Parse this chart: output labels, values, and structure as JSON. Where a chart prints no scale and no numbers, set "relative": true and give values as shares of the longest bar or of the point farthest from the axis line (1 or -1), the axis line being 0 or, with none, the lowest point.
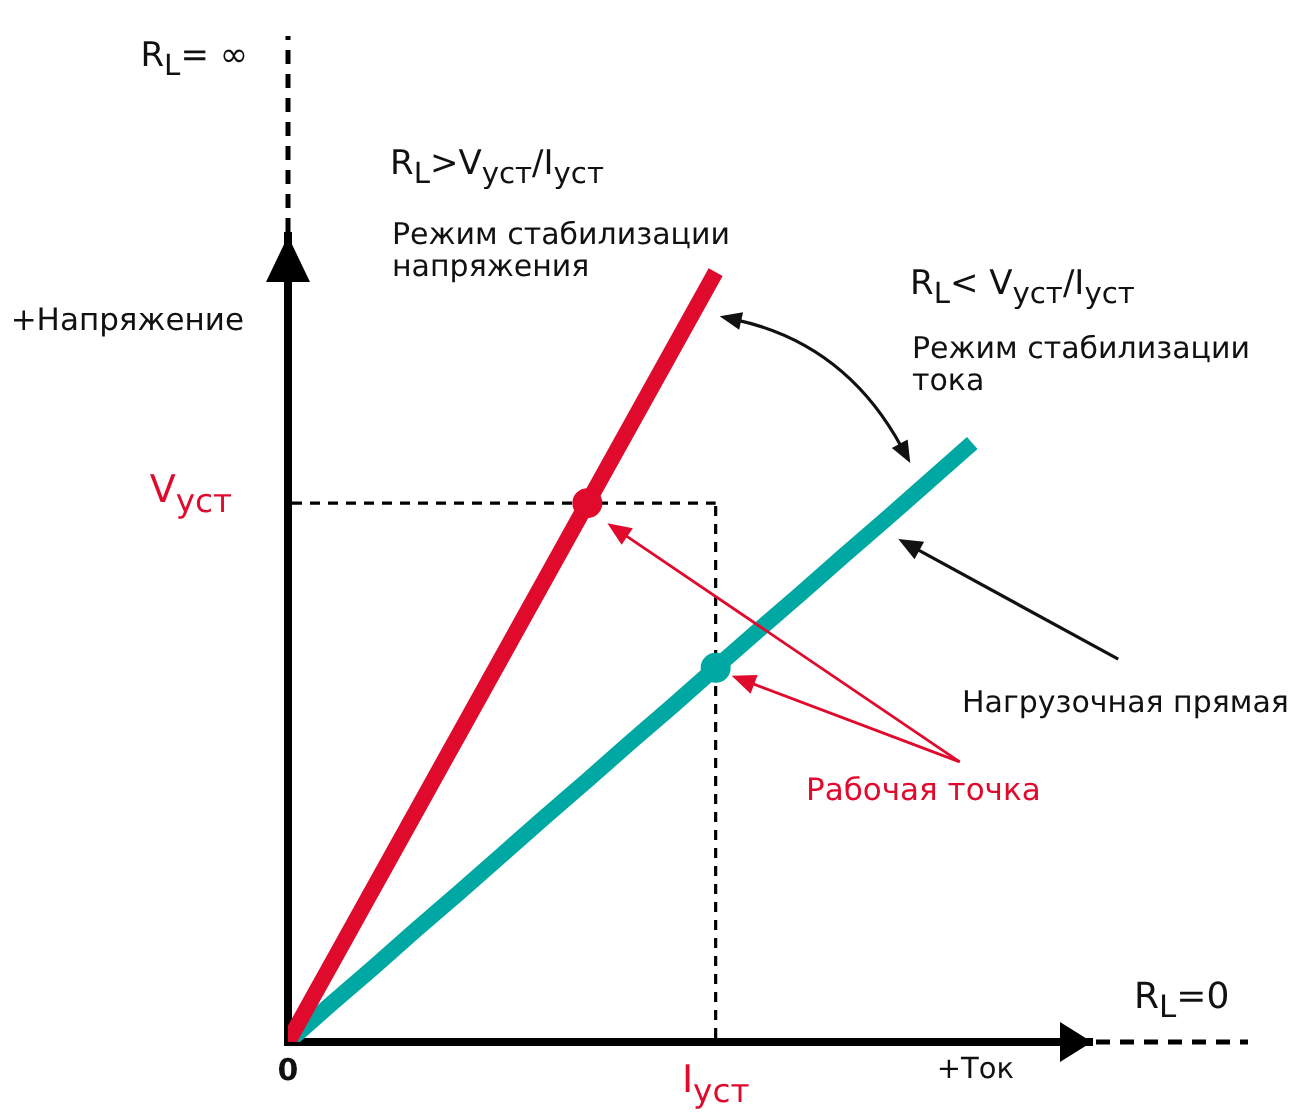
{
  "chart_data": {
    "type": "line",
    "relative": true,
    "xlabel": "+Ток",
    "ylabel": "+Напряжение",
    "categories": [
      "0",
      null,
      null,
      null,
      null,
      null,
      null,
      null,
      null,
      null,
      "I$_{уст}$",
      null,
      null,
      null,
      null,
      null,
      null
    ],
    "series": [
      {
        "color": "#e00a2d",
        "values": [
          0,
          0.1,
          0.2,
          0.3,
          0.4,
          0.5,
          0.6,
          0.7,
          0.8,
          0.9,
          1,
          null,
          null,
          null,
          null,
          null,
          null
        ]
      },
      {
        "color": "#00a8a3",
        "values": [
          0,
          0.049,
          0.097,
          0.146,
          0.194,
          0.243,
          0.292,
          0.34,
          0.389,
          0.437,
          0.486,
          0.535,
          0.583,
          0.632,
          0.68,
          0.729,
          0.778
        ]
      },
      {
        "type": "scatter",
        "marker": "circle",
        "color": "#e00a2d",
        "values": [
          null,
          null,
          null,
          null,
          null,
          null,
          null,
          0.7,
          null,
          null,
          null,
          null,
          null,
          null,
          null,
          null,
          null
        ]
      },
      {
        "type": "scatter",
        "marker": "circle",
        "color": "#00a8a3",
        "values": [
          null,
          null,
          null,
          null,
          null,
          null,
          null,
          null,
          null,
          null,
          0.486,
          null,
          null,
          null,
          null,
          null,
          null
        ]
      }
    ],
    "ref_lines": [
      {
        "axis": "y",
        "value": 0.7,
        "label": "V$_{уст}$",
        "color": "#000000",
        "line_style": "dashed"
      },
      {
        "axis": "x",
        "value": "I$_{уст}$",
        "color": "#000000",
        "line_style": "dashed"
      }
    ],
    "annotations": [
      "R$_{L}$= ∞",
      "R$_{L}$>V$_{уст}$/I$_{уст}$",
      "Режим стабилизации напряжения",
      "R$_{L}$< V$_{уст}$/I$_{уст}$",
      "Режим стабилизации тока",
      "Нагрузочная прямая",
      "Рабочая точка",
      "R$_{L}$=0"
    ]
  }
}
